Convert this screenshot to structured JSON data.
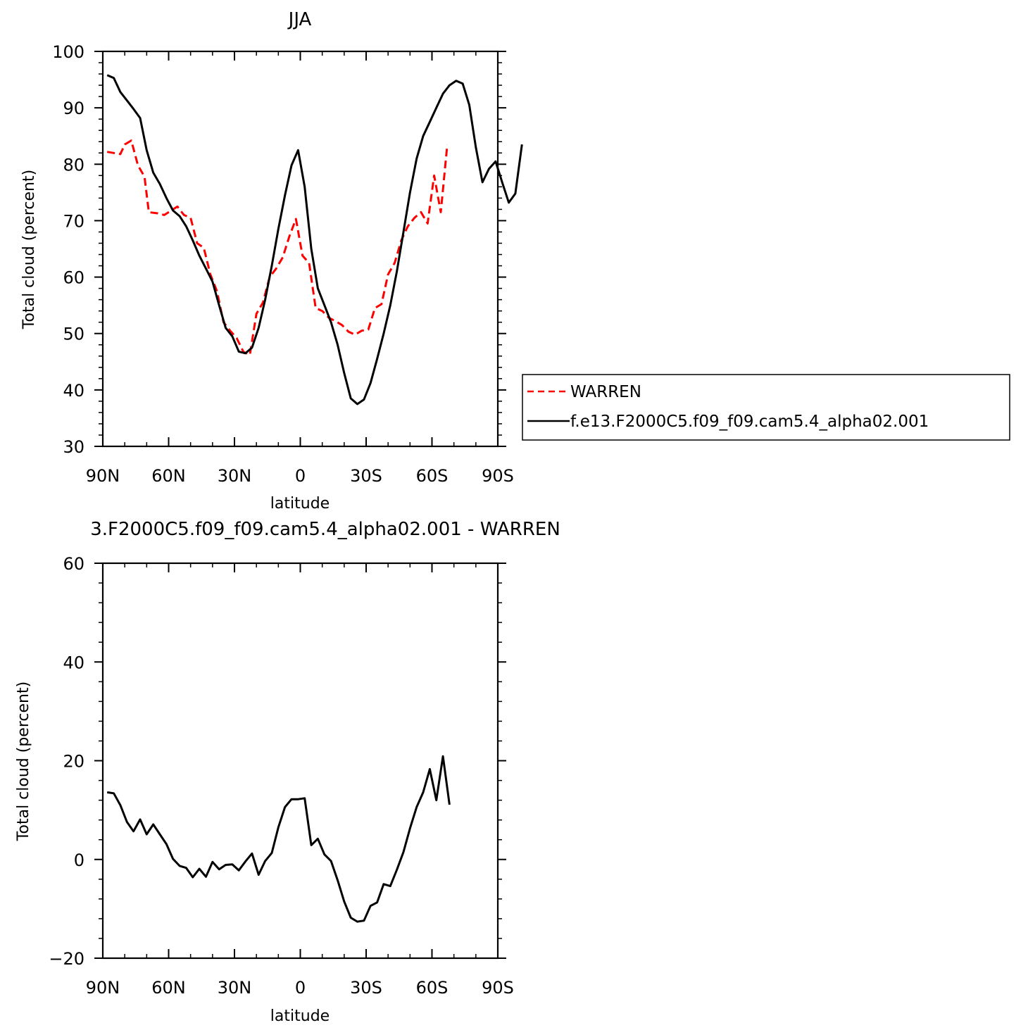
{
  "chart_data": [
    {
      "type": "line",
      "title": "JJA",
      "xlabel": "latitude",
      "ylabel": "Total cloud (percent)",
      "xlim": [
        90,
        -90
      ],
      "ylim": [
        30,
        100
      ],
      "xticks": [
        90,
        60,
        30,
        0,
        -30,
        -60,
        -90
      ],
      "xtick_labels": [
        "90N",
        "60N",
        "30N",
        "0",
        "30S",
        "60S",
        "90S"
      ],
      "yticks": [
        30,
        40,
        50,
        60,
        70,
        80,
        90,
        100
      ],
      "ytick_labels": [
        "30",
        "40",
        "50",
        "60",
        "70",
        "80",
        "90",
        "100"
      ],
      "grid": false,
      "legend_position": "right",
      "series": [
        {
          "name": "WARREN",
          "color": "#ff0000",
          "style": "dashed",
          "points": [
            [
              88,
              82.2
            ],
            [
              82,
              81.8
            ],
            [
              80,
              83.5
            ],
            [
              77,
              84.2
            ],
            [
              74,
              79.8
            ],
            [
              71,
              77.8
            ],
            [
              69,
              71.5
            ],
            [
              65,
              71.3
            ],
            [
              62,
              71.0
            ],
            [
              56,
              72.5
            ],
            [
              53,
              71.0
            ],
            [
              50,
              70.5
            ],
            [
              47,
              66.0
            ],
            [
              44,
              65.2
            ],
            [
              41,
              60.5
            ],
            [
              38,
              57.5
            ],
            [
              35,
              52.0
            ],
            [
              32,
              50.5
            ],
            [
              29,
              49.2
            ],
            [
              26,
              46.8
            ],
            [
              23,
              46.2
            ],
            [
              20,
              53.5
            ],
            [
              17,
              55.5
            ],
            [
              14,
              60.0
            ],
            [
              11,
              61.5
            ],
            [
              8,
              63.5
            ],
            [
              5,
              67.2
            ],
            [
              2,
              70.3
            ],
            [
              -1,
              63.8
            ],
            [
              -4,
              62.5
            ],
            [
              -7,
              54.5
            ],
            [
              -10,
              54.0
            ],
            [
              -13,
              52.8
            ],
            [
              -16,
              52.2
            ],
            [
              -19,
              51.5
            ],
            [
              -22,
              50.3
            ],
            [
              -25,
              49.8
            ],
            [
              -28,
              50.5
            ],
            [
              -31,
              50.7
            ],
            [
              -34,
              54.5
            ],
            [
              -37,
              55.2
            ],
            [
              -40,
              60.5
            ],
            [
              -43,
              62.5
            ],
            [
              -46,
              66.5
            ],
            [
              -49,
              69.0
            ],
            [
              -52,
              70.5
            ],
            [
              -55,
              71.5
            ],
            [
              -58,
              69.5
            ],
            [
              -61,
              78.0
            ],
            [
              -64,
              71.5
            ],
            [
              -67,
              83.5
            ]
          ]
        },
        {
          "name": "f.e13.F2000C5.f09_f09.cam5.4_alpha02.001",
          "color": "#000000",
          "style": "solid",
          "points": [
            [
              88,
              95.8
            ],
            [
              85,
              95.3
            ],
            [
              82,
              92.8
            ],
            [
              79,
              91.3
            ],
            [
              76,
              89.8
            ],
            [
              73,
              88.2
            ],
            [
              70,
              82.5
            ],
            [
              67,
              78.5
            ],
            [
              64,
              76.5
            ],
            [
              61,
              74.0
            ],
            [
              58,
              71.8
            ],
            [
              55,
              70.8
            ],
            [
              52,
              69.0
            ],
            [
              49,
              66.5
            ],
            [
              46,
              63.8
            ],
            [
              43,
              61.5
            ],
            [
              40,
              59.2
            ],
            [
              37,
              55.0
            ],
            [
              34,
              51.0
            ],
            [
              31,
              49.5
            ],
            [
              28,
              46.8
            ],
            [
              25,
              46.5
            ],
            [
              22,
              47.5
            ],
            [
              19,
              51.0
            ],
            [
              16,
              56.0
            ],
            [
              13,
              62.0
            ],
            [
              10,
              68.5
            ],
            [
              7,
              74.5
            ],
            [
              4,
              79.8
            ],
            [
              1,
              82.5
            ],
            [
              -2,
              76.0
            ],
            [
              -5,
              65.0
            ],
            [
              -8,
              58.0
            ],
            [
              -11,
              55.0
            ],
            [
              -14,
              52.0
            ],
            [
              -17,
              48.0
            ],
            [
              -20,
              43.0
            ],
            [
              -23,
              38.5
            ],
            [
              -26,
              37.5
            ],
            [
              -29,
              38.3
            ],
            [
              -32,
              41.2
            ],
            [
              -35,
              45.5
            ],
            [
              -38,
              50.0
            ],
            [
              -41,
              55.0
            ],
            [
              -44,
              61.0
            ],
            [
              -47,
              68.0
            ],
            [
              -50,
              75.0
            ],
            [
              -53,
              81.0
            ],
            [
              -56,
              85.0
            ],
            [
              -59,
              87.5
            ],
            [
              -62,
              90.0
            ],
            [
              -65,
              92.5
            ],
            [
              -68,
              94.0
            ],
            [
              -71,
              94.8
            ],
            [
              -74,
              94.3
            ],
            [
              -77,
              90.5
            ],
            [
              -80,
              83.0
            ],
            [
              -83,
              76.8
            ],
            [
              -86,
              79.2
            ],
            [
              -89,
              80.5
            ],
            [
              -92,
              76.8
            ],
            [
              -95,
              73.2
            ],
            [
              -98,
              74.8
            ],
            [
              -101,
              83.5
            ]
          ]
        }
      ]
    },
    {
      "type": "line",
      "title": "3.F2000C5.f09_f09.cam5.4_alpha02.001 - WARREN",
      "xlabel": "latitude",
      "ylabel": "Total cloud (percent)",
      "xlim": [
        90,
        -90
      ],
      "ylim": [
        -20,
        60
      ],
      "xticks": [
        90,
        60,
        30,
        0,
        -30,
        -60,
        -90
      ],
      "xtick_labels": [
        "90N",
        "60N",
        "30N",
        "0",
        "30S",
        "60S",
        "90S"
      ],
      "yticks": [
        -20,
        0,
        20,
        40,
        60
      ],
      "ytick_labels": [
        "−20",
        "0",
        "20",
        "40",
        "60"
      ],
      "grid": false,
      "series": [
        {
          "color": "#000000",
          "style": "solid",
          "points": [
            [
              88,
              13.6
            ],
            [
              85,
              13.4
            ],
            [
              82,
              11.0
            ],
            [
              79,
              7.6
            ],
            [
              76,
              5.7
            ],
            [
              73,
              8.1
            ],
            [
              70,
              5.1
            ],
            [
              67,
              7.1
            ],
            [
              64,
              5.1
            ],
            [
              61,
              3.1
            ],
            [
              58,
              0.1
            ],
            [
              55,
              -1.3
            ],
            [
              52,
              -1.7
            ],
            [
              49,
              -3.6
            ],
            [
              46,
              -1.9
            ],
            [
              43,
              -3.5
            ],
            [
              40,
              -0.5
            ],
            [
              37,
              -2.0
            ],
            [
              34,
              -1.1
            ],
            [
              31,
              -1.0
            ],
            [
              28,
              -2.2
            ],
            [
              25,
              -0.4
            ],
            [
              22,
              1.2
            ],
            [
              19,
              -3.1
            ],
            [
              16,
              -0.3
            ],
            [
              13,
              1.3
            ],
            [
              10,
              6.5
            ],
            [
              7,
              10.6
            ],
            [
              4,
              12.2
            ],
            [
              1,
              12.2
            ],
            [
              -2,
              12.4
            ],
            [
              -5,
              2.9
            ],
            [
              -8,
              4.2
            ],
            [
              -11,
              1.0
            ],
            [
              -14,
              -0.3
            ],
            [
              -17,
              -4.2
            ],
            [
              -20,
              -8.5
            ],
            [
              -23,
              -11.8
            ],
            [
              -26,
              -12.6
            ],
            [
              -29,
              -12.4
            ],
            [
              -32,
              -9.4
            ],
            [
              -35,
              -8.7
            ],
            [
              -38,
              -5.0
            ],
            [
              -41,
              -5.4
            ],
            [
              -44,
              -2.1
            ],
            [
              -47,
              1.5
            ],
            [
              -50,
              6.3
            ],
            [
              -53,
              10.6
            ],
            [
              -56,
              13.6
            ],
            [
              -59,
              18.3
            ],
            [
              -62,
              12.0
            ],
            [
              -65,
              20.9
            ],
            [
              -68,
              11.1
            ]
          ]
        }
      ]
    }
  ],
  "legend": {
    "items": [
      {
        "label": "WARREN",
        "color": "#ff0000",
        "style": "dashed"
      },
      {
        "label": "f.e13.F2000C5.f09_f09.cam5.4_alpha02.001",
        "color": "#000000",
        "style": "solid"
      }
    ]
  }
}
